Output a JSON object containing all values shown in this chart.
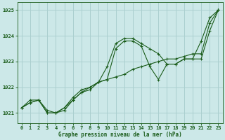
{
  "title": "Graphe pression niveau de la mer (hPa)",
  "bg_color": "#cce8e8",
  "grid_color": "#aacfcf",
  "line_color": "#1a5c1a",
  "xlim": [
    -0.5,
    23.5
  ],
  "ylim": [
    1020.6,
    1025.3
  ],
  "yticks": [
    1021,
    1022,
    1023,
    1024,
    1025
  ],
  "xticks": [
    0,
    1,
    2,
    3,
    4,
    5,
    6,
    7,
    8,
    9,
    10,
    11,
    12,
    13,
    14,
    15,
    16,
    17,
    18,
    19,
    20,
    21,
    22,
    23
  ],
  "series": [
    [
      1021.2,
      1021.5,
      1021.5,
      1021.0,
      1021.0,
      1021.2,
      1021.5,
      1021.8,
      1022.0,
      1022.2,
      1022.3,
      1023.5,
      1023.8,
      1023.8,
      1023.6,
      1022.8,
      1022.3,
      1022.9,
      1022.9,
      1023.1,
      1023.1,
      1023.8,
      1024.7,
      1025.0
    ],
    [
      1021.2,
      1021.4,
      1021.5,
      1021.1,
      1021.0,
      1021.2,
      1021.6,
      1021.9,
      1022.0,
      1022.2,
      1022.8,
      1023.7,
      1023.9,
      1023.9,
      1023.7,
      1023.5,
      1023.3,
      1022.9,
      1022.9,
      1023.1,
      1023.1,
      1023.1,
      1024.2,
      1025.0
    ],
    [
      1021.2,
      1021.4,
      1021.5,
      1021.0,
      1021.0,
      1021.1,
      1021.5,
      1021.8,
      1021.9,
      1022.2,
      1022.3,
      1022.4,
      1022.5,
      1022.7,
      1022.8,
      1022.9,
      1023.0,
      1023.1,
      1023.1,
      1023.2,
      1023.3,
      1023.3,
      1024.5,
      1025.0
    ]
  ]
}
